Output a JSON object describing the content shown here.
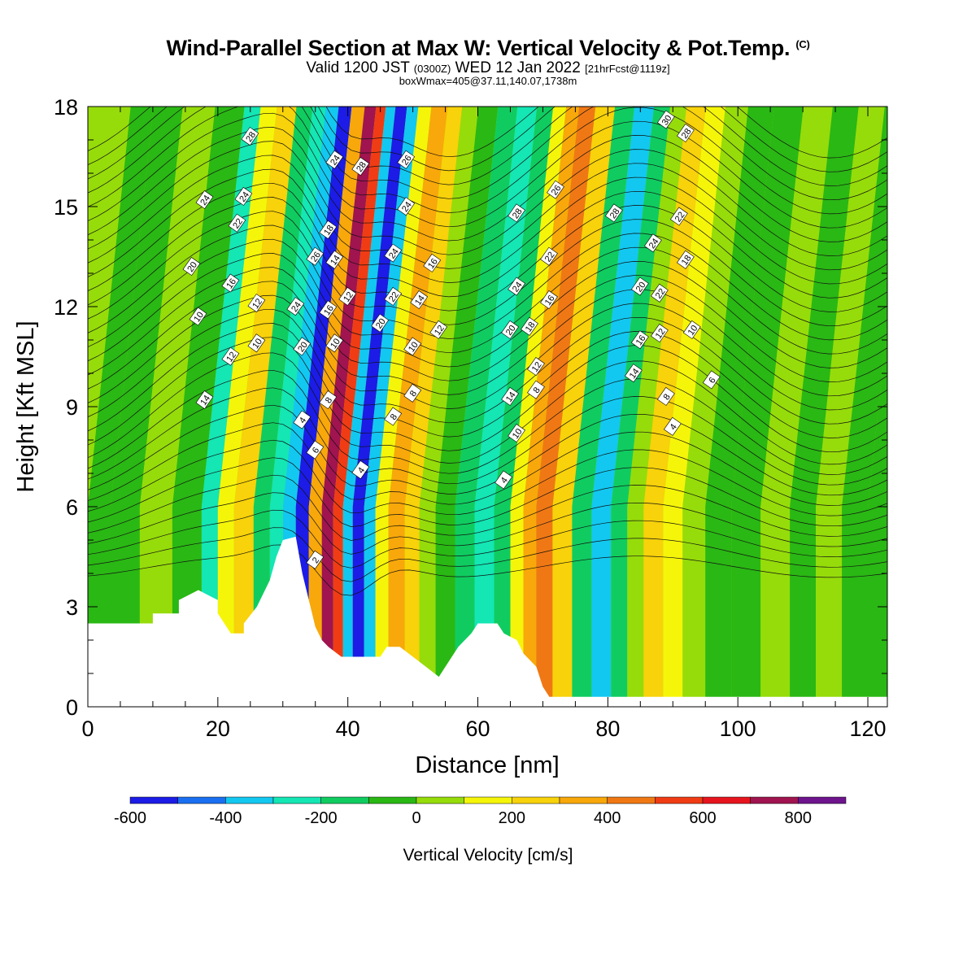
{
  "header": {
    "title": "Wind-Parallel Section at Max W: Vertical Velocity & Pot.Temp.",
    "title_tag": "(C)",
    "valid_prefix": "Valid 1200 JST",
    "valid_utc": "(0300Z)",
    "valid_date": "WED 12 Jan 2022",
    "forecast_tag": "[21hrFcst@1119z]",
    "box_info": "boxWmax=405@37.11,140.07,1738m"
  },
  "chart_data": {
    "type": "heatmap",
    "xlabel": "Distance [nm]",
    "ylabel": "Height [Kft MSL]",
    "xlim": [
      0,
      123
    ],
    "ylim": [
      0,
      18
    ],
    "x_ticks": [
      0,
      20,
      40,
      60,
      80,
      100,
      120
    ],
    "y_ticks": [
      0,
      3,
      6,
      9,
      12,
      15,
      18
    ],
    "colorbar": {
      "label": "Vertical Velocity [cm/s]",
      "tick_values": [
        -600,
        -400,
        -200,
        0,
        200,
        400,
        600,
        800
      ],
      "tick_labels": [
        "-600",
        "-400",
        "-200",
        "0",
        "200",
        "400",
        "600",
        "800"
      ],
      "bins": [
        {
          "from": -600,
          "to": -500,
          "color": "#1c1ce6"
        },
        {
          "from": -500,
          "to": -400,
          "color": "#1a6ff0"
        },
        {
          "from": -400,
          "to": -300,
          "color": "#12c8f0"
        },
        {
          "from": -300,
          "to": -200,
          "color": "#14e6b4"
        },
        {
          "from": -200,
          "to": -100,
          "color": "#10cc60"
        },
        {
          "from": -100,
          "to": 0,
          "color": "#2ab814"
        },
        {
          "from": 0,
          "to": 100,
          "color": "#96dc0a"
        },
        {
          "from": 100,
          "to": 200,
          "color": "#f5f50a"
        },
        {
          "from": 200,
          "to": 300,
          "color": "#f8d20a"
        },
        {
          "from": 300,
          "to": 400,
          "color": "#f8a80a"
        },
        {
          "from": 400,
          "to": 500,
          "color": "#f07814"
        },
        {
          "from": 500,
          "to": 600,
          "color": "#f03c14"
        },
        {
          "from": 600,
          "to": 700,
          "color": "#e6141e"
        },
        {
          "from": 700,
          "to": 800,
          "color": "#a01450"
        },
        {
          "from": 800,
          "to": 900,
          "color": "#6e148c"
        }
      ]
    },
    "vertical_velocity_bands": [
      {
        "x_nm": 1,
        "vv": -50
      },
      {
        "x_nm": 6,
        "vv": -60
      },
      {
        "x_nm": 10,
        "vv": 40
      },
      {
        "x_nm": 16,
        "vv": -80
      },
      {
        "x_nm": 19,
        "vv": -220
      },
      {
        "x_nm": 21,
        "vv": 160
      },
      {
        "x_nm": 24,
        "vv": 260
      },
      {
        "x_nm": 27,
        "vv": -120
      },
      {
        "x_nm": 29,
        "vv": -260
      },
      {
        "x_nm": 31,
        "vv": -360
      },
      {
        "x_nm": 33,
        "vv": -560
      },
      {
        "x_nm": 35,
        "vv": 380
      },
      {
        "x_nm": 37,
        "vv": 760
      },
      {
        "x_nm": 38.5,
        "vv": 560
      },
      {
        "x_nm": 40,
        "vv": -320
      },
      {
        "x_nm": 41.5,
        "vv": -570
      },
      {
        "x_nm": 43.5,
        "vv": -350
      },
      {
        "x_nm": 45,
        "vv": 150
      },
      {
        "x_nm": 47.5,
        "vv": 380
      },
      {
        "x_nm": 50,
        "vv": 230
      },
      {
        "x_nm": 52,
        "vv": 40
      },
      {
        "x_nm": 55,
        "vv": -60
      },
      {
        "x_nm": 58,
        "vv": -160
      },
      {
        "x_nm": 61,
        "vv": -260
      },
      {
        "x_nm": 64,
        "vv": -140
      },
      {
        "x_nm": 66,
        "vv": 160
      },
      {
        "x_nm": 68,
        "vv": 320
      },
      {
        "x_nm": 70,
        "vv": 450
      },
      {
        "x_nm": 73,
        "vv": 260
      },
      {
        "x_nm": 76,
        "vv": -160
      },
      {
        "x_nm": 79,
        "vv": -330
      },
      {
        "x_nm": 82,
        "vv": -180
      },
      {
        "x_nm": 84,
        "vv": 60
      },
      {
        "x_nm": 87,
        "vv": 230
      },
      {
        "x_nm": 90,
        "vv": 140
      },
      {
        "x_nm": 93,
        "vv": 30
      },
      {
        "x_nm": 97,
        "vv": -60
      },
      {
        "x_nm": 101,
        "vv": -80
      },
      {
        "x_nm": 106,
        "vv": 50
      },
      {
        "x_nm": 110,
        "vv": -60
      },
      {
        "x_nm": 114,
        "vv": 60
      },
      {
        "x_nm": 118,
        "vv": -50
      },
      {
        "x_nm": 122,
        "vv": -40
      }
    ],
    "terrain": [
      [
        0,
        2.5
      ],
      [
        10,
        2.5
      ],
      [
        10,
        2.8
      ],
      [
        14,
        2.8
      ],
      [
        14,
        3.2
      ],
      [
        17,
        3.5
      ],
      [
        20,
        3.2
      ],
      [
        20,
        2.8
      ],
      [
        22,
        2.2
      ],
      [
        24,
        2.2
      ],
      [
        24,
        2.5
      ],
      [
        26,
        3.0
      ],
      [
        28,
        3.8
      ],
      [
        29,
        4.5
      ],
      [
        30,
        5.0
      ],
      [
        32,
        5.1
      ],
      [
        33,
        4.0
      ],
      [
        34,
        3.2
      ],
      [
        35,
        2.4
      ],
      [
        36,
        2.0
      ],
      [
        37,
        1.8
      ],
      [
        39,
        1.5
      ],
      [
        45,
        1.5
      ],
      [
        46,
        1.8
      ],
      [
        48,
        1.8
      ],
      [
        50,
        1.5
      ],
      [
        52,
        1.2
      ],
      [
        54,
        0.9
      ],
      [
        55,
        1.2
      ],
      [
        57,
        1.8
      ],
      [
        59,
        2.2
      ],
      [
        60,
        2.5
      ],
      [
        63,
        2.5
      ],
      [
        64,
        2.2
      ],
      [
        66,
        2.0
      ],
      [
        67,
        1.6
      ],
      [
        69,
        1.2
      ],
      [
        70,
        0.6
      ],
      [
        71,
        0.3
      ],
      [
        123,
        0.3
      ]
    ],
    "contour_label_values": [
      "2",
      "4",
      "6",
      "8",
      "10",
      "12",
      "14",
      "16",
      "18",
      "20",
      "22",
      "24",
      "26",
      "28",
      "30"
    ]
  }
}
